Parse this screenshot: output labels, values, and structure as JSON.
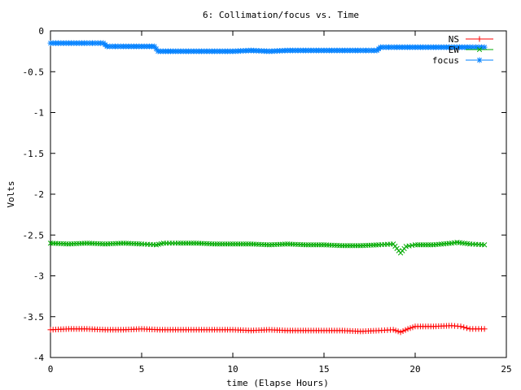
{
  "chart_data": {
    "type": "scatter",
    "title": "6: Collimation/focus vs. Time",
    "xlabel": "time (Elapse Hours)",
    "ylabel": "Volts",
    "xlim": [
      0,
      25
    ],
    "ylim": [
      -4,
      0
    ],
    "x_ticks": [
      0,
      5,
      10,
      15,
      20,
      25
    ],
    "y_ticks": [
      0,
      -0.5,
      -1,
      -1.5,
      -2,
      -2.5,
      -3,
      -3.5,
      -4
    ],
    "x_tick_labels": [
      "0",
      "5",
      "10",
      "15",
      "20",
      "25"
    ],
    "y_tick_labels": [
      "0",
      "-0.5",
      "-1",
      "-1.5",
      "-2",
      "-2.5",
      "-3",
      "-3.5",
      "-4"
    ],
    "grid": false,
    "legend_position": "top-right",
    "series": [
      {
        "name": "NS",
        "color": "#ff0000",
        "marker": "plus",
        "x": [
          0,
          1,
          2,
          3,
          4,
          5,
          6,
          7,
          8,
          9,
          10,
          11,
          12,
          13,
          14,
          15,
          16,
          17,
          18,
          18.8,
          19.2,
          19.6,
          20,
          21,
          22,
          22.5,
          23,
          23.8
        ],
        "y": [
          -3.66,
          -3.65,
          -3.65,
          -3.66,
          -3.66,
          -3.65,
          -3.66,
          -3.66,
          -3.66,
          -3.66,
          -3.66,
          -3.67,
          -3.66,
          -3.67,
          -3.67,
          -3.67,
          -3.67,
          -3.68,
          -3.67,
          -3.66,
          -3.69,
          -3.65,
          -3.62,
          -3.62,
          -3.61,
          -3.62,
          -3.65,
          -3.65
        ]
      },
      {
        "name": "EW",
        "color": "#00aa00",
        "marker": "cross",
        "x": [
          0,
          1,
          2,
          3,
          4,
          5,
          5.8,
          6.2,
          7,
          8,
          9,
          10,
          11,
          12,
          13,
          14,
          15,
          16,
          17,
          18,
          18.8,
          19.2,
          19.5,
          20,
          21,
          22,
          22.3,
          23,
          23.8
        ],
        "y": [
          -2.6,
          -2.61,
          -2.6,
          -2.61,
          -2.6,
          -2.61,
          -2.62,
          -2.6,
          -2.6,
          -2.6,
          -2.61,
          -2.61,
          -2.61,
          -2.62,
          -2.61,
          -2.62,
          -2.62,
          -2.63,
          -2.63,
          -2.62,
          -2.61,
          -2.72,
          -2.64,
          -2.62,
          -2.62,
          -2.6,
          -2.59,
          -2.61,
          -2.62
        ]
      },
      {
        "name": "focus",
        "color": "#0080ff",
        "marker": "star",
        "x": [
          0,
          1,
          2,
          2.9,
          3.1,
          4,
          5,
          5.7,
          5.9,
          7,
          8,
          9,
          10,
          11,
          12,
          13,
          14,
          15,
          16,
          17,
          17.9,
          18.1,
          19,
          20,
          21,
          22,
          23,
          23.8
        ],
        "y": [
          -0.15,
          -0.15,
          -0.15,
          -0.15,
          -0.19,
          -0.19,
          -0.19,
          -0.19,
          -0.25,
          -0.25,
          -0.25,
          -0.25,
          -0.25,
          -0.24,
          -0.25,
          -0.24,
          -0.24,
          -0.24,
          -0.24,
          -0.24,
          -0.24,
          -0.2,
          -0.2,
          -0.2,
          -0.2,
          -0.2,
          -0.2,
          -0.2
        ]
      }
    ]
  }
}
